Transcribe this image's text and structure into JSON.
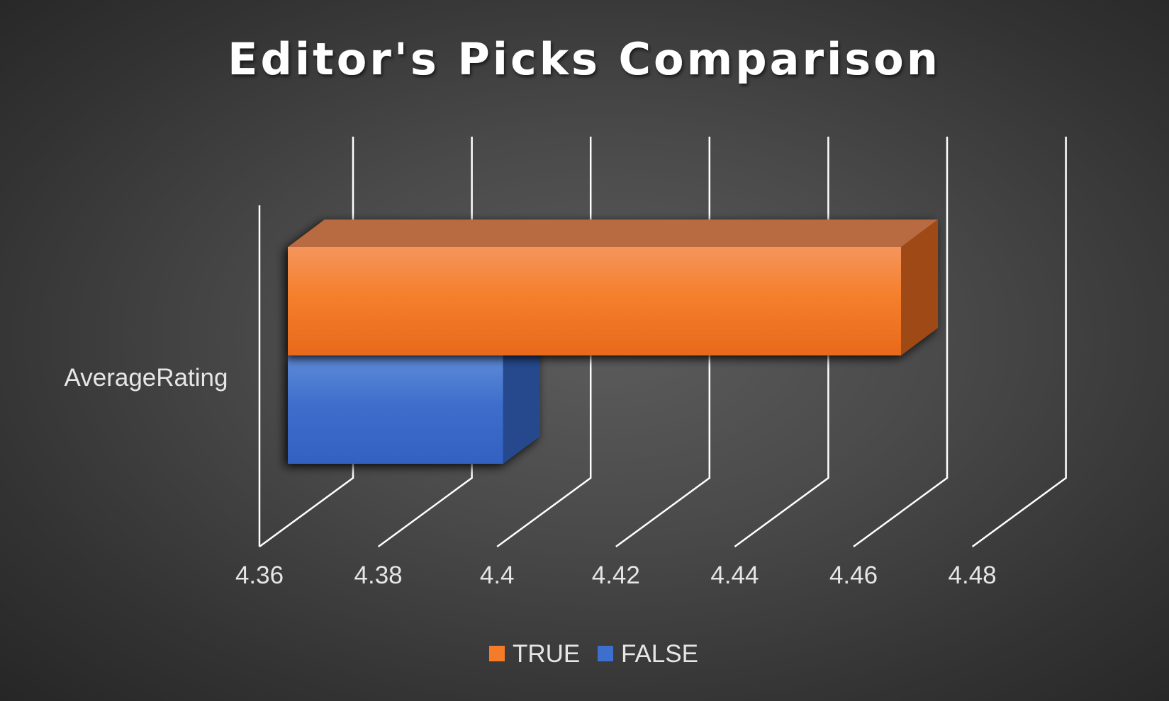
{
  "chart_data": {
    "type": "bar",
    "orientation": "horizontal",
    "style": "3d-clustered",
    "title": "Editor's Picks Comparison",
    "categories": [
      "AverageRating"
    ],
    "series": [
      {
        "name": "TRUE",
        "values": [
          4.468
        ],
        "color": "#F47B2A"
      },
      {
        "name": "FALSE",
        "values": [
          4.401
        ],
        "color": "#3F6FCC"
      }
    ],
    "xlim": [
      4.36,
      4.49
    ],
    "xticks": [
      4.36,
      4.38,
      4.4,
      4.42,
      4.44,
      4.46,
      4.48
    ],
    "xtick_labels": [
      "4.36",
      "4.38",
      "4.4",
      "4.42",
      "4.44",
      "4.46",
      "4.48"
    ],
    "xlabel": "",
    "ylabel": "",
    "grid": true,
    "legend_position": "bottom"
  }
}
